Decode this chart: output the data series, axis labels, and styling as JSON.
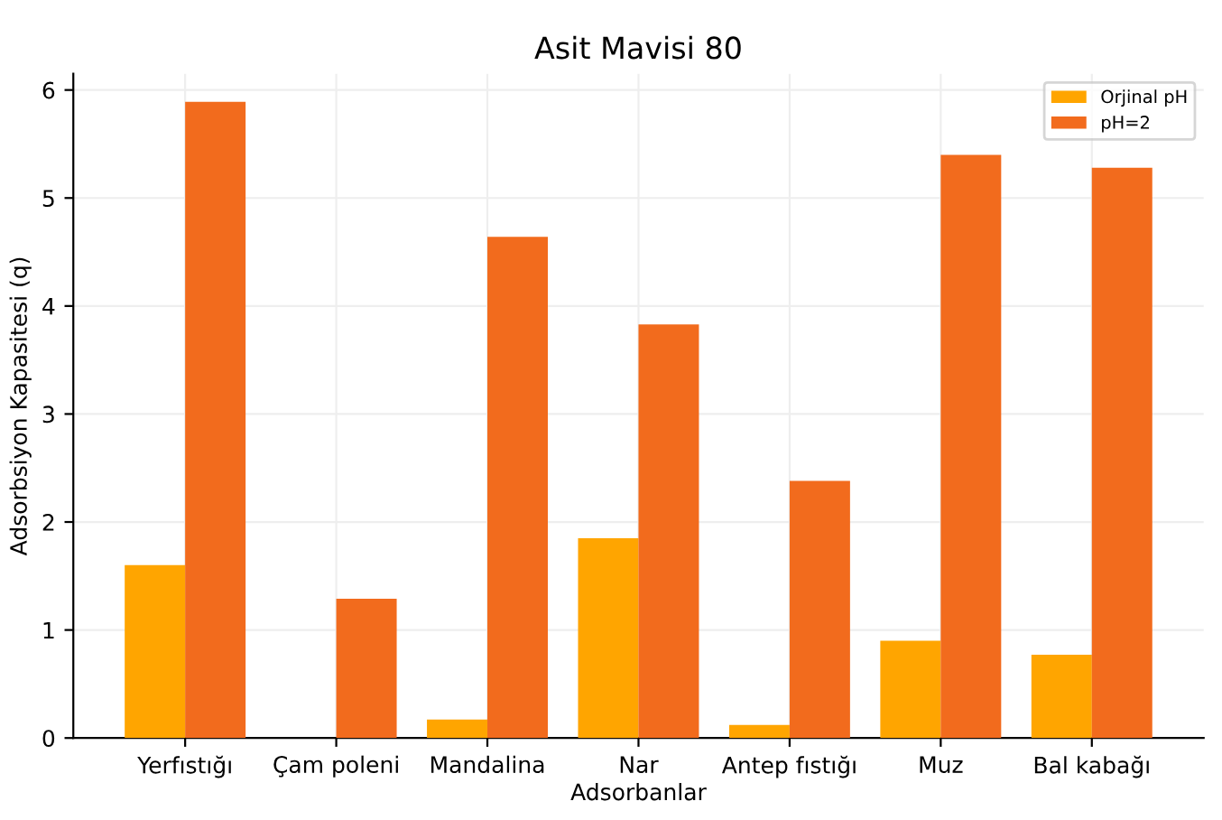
{
  "chart_data": {
    "type": "bar",
    "title": "Asit Mavisi 80",
    "xlabel": "Adsorbanlar",
    "ylabel": "Adsorbsiyon Kapasitesi (q)",
    "categories": [
      "Yerfıstığı",
      "Çam poleni",
      "Mandalina",
      "Nar",
      "Antep fıstığı",
      "Muz",
      "Bal kabağı"
    ],
    "series": [
      {
        "name": "Orjinal pH",
        "color": "#ffa500",
        "values": [
          1.6,
          0,
          0.17,
          1.85,
          0.12,
          0.9,
          0.77
        ]
      },
      {
        "name": "pH=2",
        "color": "#f26b1d",
        "values": [
          5.89,
          1.29,
          4.64,
          3.83,
          2.38,
          5.4,
          5.28
        ]
      }
    ],
    "ylim": [
      0,
      6.15
    ],
    "yticks": [
      0,
      1,
      2,
      3,
      4,
      5,
      6
    ],
    "grid": true,
    "legend": "top right"
  }
}
